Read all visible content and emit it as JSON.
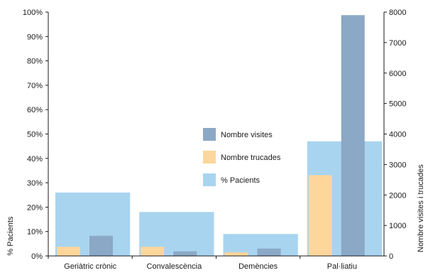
{
  "chart_data": {
    "type": "bar",
    "categories": [
      "Geriàtric crònic",
      "Convalescència",
      "Demències",
      "Pal·liatiu"
    ],
    "series": [
      {
        "name": "% Pacients",
        "axis": "left",
        "values": [
          26,
          18,
          9,
          47
        ],
        "color": "#a9d4ef"
      },
      {
        "name": "Nombre trucades",
        "axis": "right",
        "values": [
          300,
          300,
          120,
          2650
        ],
        "color": "#fcd69b"
      },
      {
        "name": "Nombre visites",
        "axis": "right",
        "values": [
          660,
          150,
          240,
          7900
        ],
        "color": "#8ba8c6"
      }
    ],
    "yLeft": {
      "label": "% Pacients",
      "range": [
        0,
        100
      ],
      "ticks": [
        "0%",
        "10%",
        "20%",
        "30%",
        "40%",
        "50%",
        "60%",
        "70%",
        "80%",
        "90%",
        "100%"
      ]
    },
    "yRight": {
      "label": "Nombre visites i trucades",
      "range": [
        0,
        8000
      ],
      "ticks": [
        "0",
        "1000",
        "2000",
        "3000",
        "4000",
        "5000",
        "6000",
        "7000",
        "8000"
      ]
    },
    "legend": {
      "placement": "center",
      "order": [
        "Nombre visites",
        "Nombre trucades",
        "% Pacients"
      ]
    },
    "grid": false,
    "axis_color": "#1a1a1a"
  }
}
